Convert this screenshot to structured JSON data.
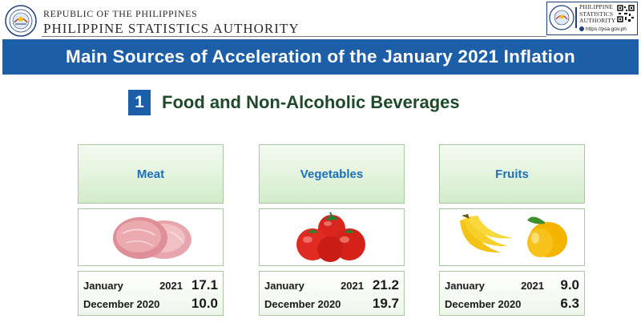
{
  "header": {
    "agency_line1": "REPUBLIC OF THE PHILIPPINES",
    "agency_line2": "PHILIPPINE STATISTICS AUTHORITY",
    "logo_name_lines": [
      "PHILIPPINE",
      "STATISTICS",
      "AUTHORITY"
    ],
    "url": "https://psa.gov.ph"
  },
  "title": "Main Sources of Acceleration of the January 2021 Inflation",
  "section": {
    "number": "1",
    "title": "Food and Non-Alcoholic Beverages"
  },
  "cards": [
    {
      "label": "Meat",
      "image": "meat-image",
      "row1": {
        "month": "January",
        "year": "2021",
        "value": "17.1"
      },
      "row2": {
        "period": "December 2020",
        "value": "10.0"
      }
    },
    {
      "label": "Vegetables",
      "image": "tomatoes-image",
      "row1": {
        "month": "January",
        "year": "2021",
        "value": "21.2"
      },
      "row2": {
        "period": "December 2020",
        "value": "19.7"
      }
    },
    {
      "label": "Fruits",
      "image": "banana-mango-image",
      "row1": {
        "month": "January",
        "year": "2021",
        "value": "9.0"
      },
      "row2": {
        "period": "December 2020",
        "value": "6.3"
      }
    }
  ],
  "colors": {
    "banner": "#1d5ea8",
    "card_label_text": "#1d6fb8",
    "card_border": "#a9c7a0",
    "section_title": "#1f4a2a"
  }
}
